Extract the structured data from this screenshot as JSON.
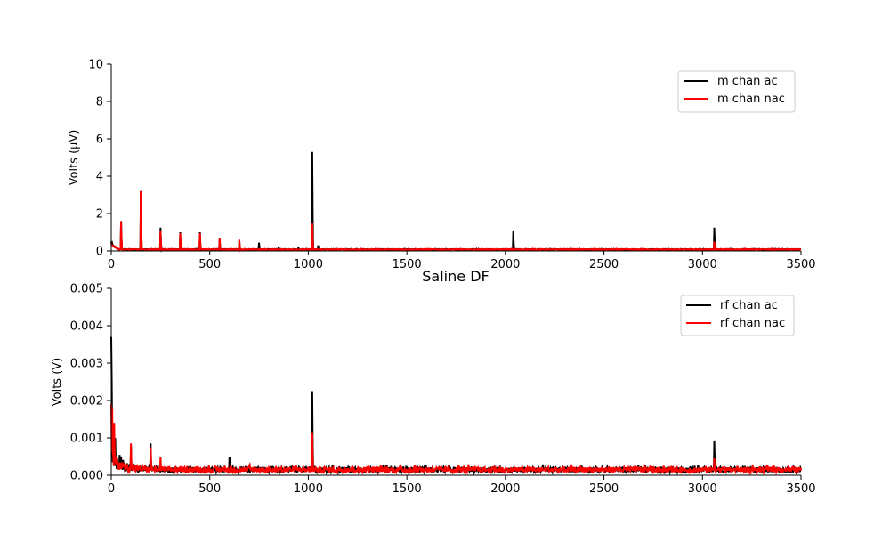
{
  "chart_data": [
    {
      "type": "line",
      "title": "",
      "xlabel": "",
      "ylabel": "Volts (μV)",
      "xlim": [
        0,
        3500
      ],
      "ylim": [
        0,
        10
      ],
      "xticks": [
        0,
        500,
        1000,
        1500,
        2000,
        2500,
        3000,
        3500
      ],
      "yticks": [
        0,
        2,
        4,
        6,
        8,
        10
      ],
      "grid": false,
      "legend_position": "top-right",
      "baseline_level": 0.08,
      "series": [
        {
          "name": "m chan ac",
          "color": "#000000",
          "peaks": [
            [
              0,
              0.5
            ],
            [
              5,
              0.4
            ],
            [
              10,
              0.3
            ],
            [
              50,
              1.6
            ],
            [
              150,
              3.2
            ],
            [
              250,
              1.25
            ],
            [
              350,
              1.0
            ],
            [
              450,
              1.0
            ],
            [
              550,
              0.7
            ],
            [
              650,
              0.6
            ],
            [
              750,
              0.45
            ],
            [
              850,
              0.2
            ],
            [
              950,
              0.2
            ],
            [
              1020,
              5.3
            ],
            [
              1050,
              0.3
            ],
            [
              2040,
              1.1
            ],
            [
              3060,
              1.25
            ]
          ]
        },
        {
          "name": "m chan nac",
          "color": "#ff0000",
          "peaks": [
            [
              0,
              0.3
            ],
            [
              50,
              1.6
            ],
            [
              150,
              3.2
            ],
            [
              250,
              1.1
            ],
            [
              350,
              0.95
            ],
            [
              450,
              0.95
            ],
            [
              550,
              0.7
            ],
            [
              650,
              0.6
            ],
            [
              1020,
              1.5
            ],
            [
              3060,
              0.5
            ]
          ]
        }
      ]
    },
    {
      "type": "line",
      "title": "Saline DF",
      "xlabel": "",
      "ylabel": "Volts (V)",
      "xlim": [
        0,
        3500
      ],
      "ylim": [
        0,
        0.005
      ],
      "xticks": [
        0,
        500,
        1000,
        1500,
        2000,
        2500,
        3000,
        3500
      ],
      "yticks": [
        0.0,
        0.001,
        0.002,
        0.003,
        0.004,
        0.005
      ],
      "ytick_labels": [
        "0.000",
        "0.001",
        "0.002",
        "0.003",
        "0.004",
        "0.005"
      ],
      "grid": false,
      "legend_position": "top-right",
      "noise_floor": 0.00022,
      "series": [
        {
          "name": "rf chan ac",
          "color": "#000000",
          "peaks": [
            [
              0,
              0.0037
            ],
            [
              3,
              0.0025
            ],
            [
              10,
              0.0012
            ],
            [
              20,
              0.001
            ],
            [
              100,
              0.0008
            ],
            [
              200,
              0.00085
            ],
            [
              600,
              0.0005
            ],
            [
              1020,
              0.00225
            ],
            [
              3060,
              0.00093
            ]
          ]
        },
        {
          "name": "rf chan nac",
          "color": "#ff0000",
          "peaks": [
            [
              0,
              0.0019
            ],
            [
              5,
              0.0018
            ],
            [
              15,
              0.0014
            ],
            [
              100,
              0.00085
            ],
            [
              200,
              0.00075
            ],
            [
              250,
              0.0005
            ],
            [
              1020,
              0.00115
            ],
            [
              3060,
              0.00045
            ]
          ]
        }
      ]
    }
  ]
}
